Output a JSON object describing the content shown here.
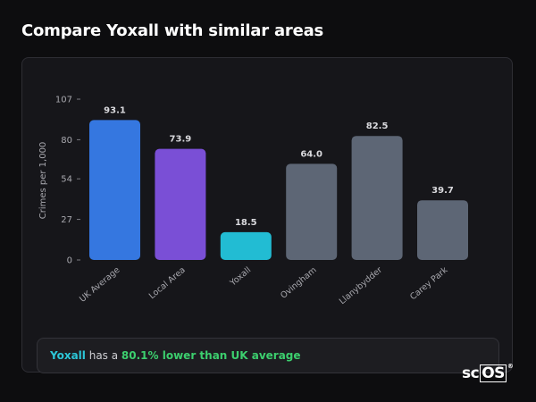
{
  "title": "Compare Yoxall with similar areas",
  "chart_data": {
    "type": "bar",
    "categories": [
      "UK Average",
      "Local Area",
      "Yoxall",
      "Ovingham",
      "Llanybydder",
      "Carey Park"
    ],
    "values": [
      93.1,
      73.9,
      18.5,
      64.0,
      82.5,
      39.7
    ],
    "value_labels": [
      "93.1",
      "73.9",
      "18.5",
      "64.0",
      "82.5",
      "39.7"
    ],
    "colors": [
      "#3577e0",
      "#7a4fd6",
      "#22bcd3",
      "#5d6675",
      "#5d6675",
      "#5d6675"
    ],
    "ylabel": "Crimes per 1,000",
    "xlabel": "",
    "yticks": [
      0,
      27,
      54,
      80,
      107
    ],
    "ylim": [
      0,
      107
    ],
    "grid": false,
    "legend": "none"
  },
  "summary": {
    "place": "Yoxall",
    "middle": " has a ",
    "stat": "80.1% lower than UK average"
  },
  "logo": {
    "prefix": "sc",
    "boxed": "OS",
    "mark": "®"
  }
}
